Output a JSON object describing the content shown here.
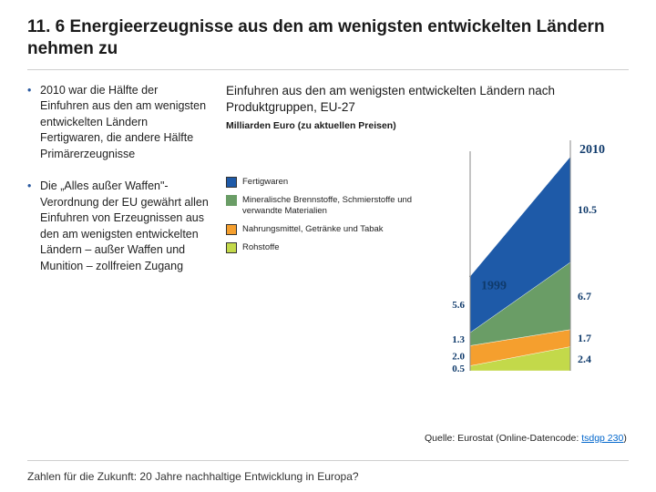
{
  "title": "11. 6 Energieerzeugnisse aus den am wenigsten entwickelten Ländern nehmen zu",
  "bullets": [
    "2010 war die Hälfte der Einfuhren aus den am wenigsten entwickelten Ländern Fertigwaren, die andere Hälfte Primärerzeugnisse",
    "Die „Alles außer Waffen\"-Verordnung der EU gewährt allen Einfuhren von Erzeugnissen aus den am wenigsten entwickelten Ländern – außer Waffen und Munition – zollfreien Zugang"
  ],
  "chart": {
    "title": "Einfuhren aus den am wenigsten entwickelten Ländern nach Produktgruppen, EU-27",
    "subtitle": "Milliarden Euro (zu aktuellen Preisen)",
    "type": "stacked-area-slope",
    "years": [
      "1999",
      "2010"
    ],
    "year_fontsize": 14,
    "value_fontsize": 12,
    "axis_color": "#888888",
    "background": "#ffffff",
    "series": [
      {
        "key": "fertigwaren",
        "label": "Fertigwaren",
        "color": "#1e5aa8",
        "outlined": true,
        "values": [
          5.6,
          10.5
        ]
      },
      {
        "key": "mineral",
        "label": "Mineralische Brennstoffe, Schmierstoffe und verwandte Materialien",
        "color": "#6a9d66",
        "outlined": false,
        "values": [
          1.3,
          6.7
        ]
      },
      {
        "key": "nahrung",
        "label": "Nahrungsmittel, Getränke und Tabak",
        "color": "#f59f2e",
        "outlined": true,
        "values": [
          2.0,
          1.7
        ]
      },
      {
        "key": "rohstoffe",
        "label": "Rohstoffe",
        "color": "#c3d94a",
        "outlined": true,
        "values": [
          0.5,
          2.4
        ]
      }
    ]
  },
  "source": {
    "prefix": "Quelle: Eurostat (Online-Datencode: ",
    "link_text": "tsdgp 230",
    "suffix": ")"
  },
  "footer": "Zahlen für die Zukunft: 20 Jahre nachhaltige Entwicklung in Europa?"
}
